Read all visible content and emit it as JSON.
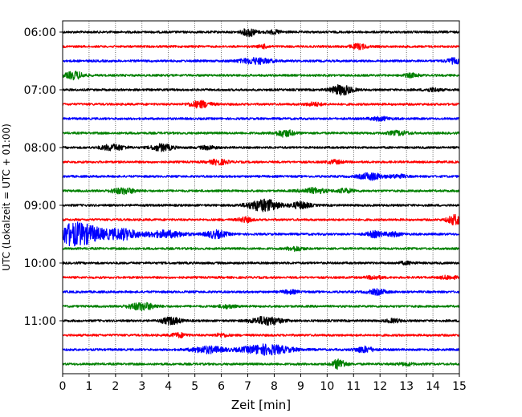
{
  "chart_data": {
    "type": "line",
    "title": "",
    "xlabel": "Zeit  [min]",
    "ylabel": "UTC (Lokalzeit = UTC + 01:00)",
    "xlim": [
      0,
      15
    ],
    "x_ticks": [
      "0",
      "1",
      "2",
      "3",
      "4",
      "5",
      "6",
      "7",
      "8",
      "9",
      "10",
      "11",
      "12",
      "13",
      "14",
      "15"
    ],
    "y_ticks": [
      {
        "label": "06:00",
        "trace": 0
      },
      {
        "label": "07:00",
        "trace": 4
      },
      {
        "label": "08:00",
        "trace": 8
      },
      {
        "label": "09:00",
        "trace": 12
      },
      {
        "label": "10:00",
        "trace": 16
      },
      {
        "label": "11:00",
        "trace": 20
      }
    ],
    "grid": "vertical dotted",
    "legend": "none",
    "color_cycle": [
      "#000000",
      "#ff0000",
      "#0000ff",
      "#008000"
    ],
    "trace_count": 24,
    "traces": [
      {
        "start": "06:00",
        "bursts": [
          {
            "t": 7.05,
            "amp": 5,
            "w": 0.25
          },
          {
            "t": 8.0,
            "amp": 2,
            "w": 0.3
          }
        ]
      },
      {
        "start": "06:15",
        "bursts": [
          {
            "t": 7.6,
            "amp": 2,
            "w": 0.2
          },
          {
            "t": 11.2,
            "amp": 3,
            "w": 0.3
          }
        ]
      },
      {
        "start": "06:30",
        "bursts": [
          {
            "t": 7.3,
            "amp": 3.5,
            "w": 0.6
          },
          {
            "t": 14.8,
            "amp": 3,
            "w": 0.3
          }
        ]
      },
      {
        "start": "06:45",
        "bursts": [
          {
            "t": 0.45,
            "amp": 4.5,
            "w": 0.35
          },
          {
            "t": 13.2,
            "amp": 2,
            "w": 0.3
          }
        ]
      },
      {
        "start": "07:00",
        "bursts": [
          {
            "t": 10.55,
            "amp": 6,
            "w": 0.4
          },
          {
            "t": 14.0,
            "amp": 2,
            "w": 0.3
          }
        ]
      },
      {
        "start": "07:15",
        "bursts": [
          {
            "t": 5.2,
            "amp": 4,
            "w": 0.4
          },
          {
            "t": 9.5,
            "amp": 2,
            "w": 0.3
          }
        ]
      },
      {
        "start": "07:30",
        "bursts": [
          {
            "t": 12.0,
            "amp": 2,
            "w": 0.4
          }
        ]
      },
      {
        "start": "07:45",
        "bursts": [
          {
            "t": 8.4,
            "amp": 4,
            "w": 0.35
          },
          {
            "t": 12.7,
            "amp": 2.5,
            "w": 0.4
          }
        ]
      },
      {
        "start": "08:00",
        "bursts": [
          {
            "t": 1.9,
            "amp": 3.5,
            "w": 0.45
          },
          {
            "t": 3.75,
            "amp": 4,
            "w": 0.4
          },
          {
            "t": 5.5,
            "amp": 2,
            "w": 0.3
          }
        ]
      },
      {
        "start": "08:15",
        "bursts": [
          {
            "t": 5.9,
            "amp": 3,
            "w": 0.35
          },
          {
            "t": 10.3,
            "amp": 2,
            "w": 0.3
          }
        ]
      },
      {
        "start": "08:30",
        "bursts": [
          {
            "t": 11.65,
            "amp": 4,
            "w": 0.45
          },
          {
            "t": 12.7,
            "amp": 2,
            "w": 0.3
          }
        ]
      },
      {
        "start": "08:45",
        "bursts": [
          {
            "t": 2.3,
            "amp": 3.5,
            "w": 0.45
          },
          {
            "t": 9.5,
            "amp": 3,
            "w": 0.5
          },
          {
            "t": 10.7,
            "amp": 2.5,
            "w": 0.3
          }
        ]
      },
      {
        "start": "09:00",
        "bursts": [
          {
            "t": 7.6,
            "amp": 7,
            "w": 0.6
          },
          {
            "t": 9.0,
            "amp": 4,
            "w": 0.35
          }
        ]
      },
      {
        "start": "09:15",
        "bursts": [
          {
            "t": 6.9,
            "amp": 3,
            "w": 0.25
          },
          {
            "t": 14.85,
            "amp": 6,
            "w": 0.3
          }
        ]
      },
      {
        "start": "09:30",
        "bursts": [
          {
            "t": 0.5,
            "amp": 14,
            "w": 1.0
          },
          {
            "t": 2.3,
            "amp": 6,
            "w": 0.6
          },
          {
            "t": 3.9,
            "amp": 4,
            "w": 0.7
          },
          {
            "t": 5.8,
            "amp": 4.5,
            "w": 0.4
          },
          {
            "t": 11.8,
            "amp": 3.5,
            "w": 0.3
          },
          {
            "t": 12.5,
            "amp": 2.5,
            "w": 0.3
          }
        ]
      },
      {
        "start": "09:45",
        "bursts": [
          {
            "t": 8.8,
            "amp": 2.5,
            "w": 0.3
          }
        ]
      },
      {
        "start": "10:00",
        "bursts": [
          {
            "t": 13.0,
            "amp": 1.5,
            "w": 0.3
          }
        ]
      },
      {
        "start": "10:15",
        "bursts": [
          {
            "t": 11.8,
            "amp": 2,
            "w": 0.3
          },
          {
            "t": 14.6,
            "amp": 2,
            "w": 0.3
          }
        ]
      },
      {
        "start": "10:30",
        "bursts": [
          {
            "t": 11.9,
            "amp": 3,
            "w": 0.35
          },
          {
            "t": 8.6,
            "amp": 2,
            "w": 0.3
          }
        ]
      },
      {
        "start": "10:45",
        "bursts": [
          {
            "t": 3.0,
            "amp": 4.5,
            "w": 0.5
          },
          {
            "t": 6.2,
            "amp": 2,
            "w": 0.3
          }
        ]
      },
      {
        "start": "11:00",
        "bursts": [
          {
            "t": 4.1,
            "amp": 4.5,
            "w": 0.35
          },
          {
            "t": 7.7,
            "amp": 5,
            "w": 0.55
          },
          {
            "t": 12.5,
            "amp": 2,
            "w": 0.3
          }
        ]
      },
      {
        "start": "11:15",
        "bursts": [
          {
            "t": 4.4,
            "amp": 2.5,
            "w": 0.3
          },
          {
            "t": 6.0,
            "amp": 2,
            "w": 0.25
          }
        ]
      },
      {
        "start": "11:30",
        "bursts": [
          {
            "t": 5.5,
            "amp": 4,
            "w": 0.6
          },
          {
            "t": 7.7,
            "amp": 6,
            "w": 0.9
          },
          {
            "t": 11.4,
            "amp": 3.5,
            "w": 0.35
          }
        ]
      },
      {
        "start": "11:45",
        "bursts": [
          {
            "t": 10.45,
            "amp": 6,
            "w": 0.25
          },
          {
            "t": 13.0,
            "amp": 1.5,
            "w": 0.3
          }
        ]
      }
    ]
  }
}
